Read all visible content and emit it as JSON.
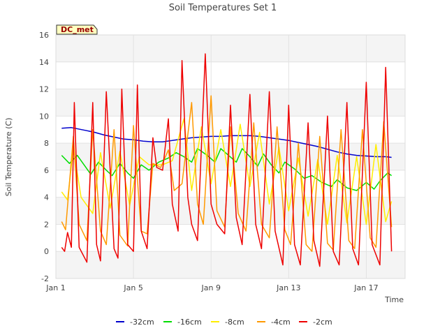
{
  "chart_data": {
    "type": "line",
    "title": "Soil Temperatures Set 1",
    "xlabel": "Time",
    "ylabel": "Soil Temperature (C)",
    "badge": "DC_met",
    "xlim": [
      1.0,
      19.0
    ],
    "ylim": [
      -2,
      16
    ],
    "yticks": [
      -2,
      0,
      2,
      4,
      6,
      8,
      10,
      12,
      14,
      16
    ],
    "xticks": [
      {
        "value": 1,
        "label": "Jan 1"
      },
      {
        "value": 5,
        "label": "Jan 5"
      },
      {
        "value": 9,
        "label": "Jan 9"
      },
      {
        "value": 13,
        "label": "Jan 13"
      },
      {
        "value": 17,
        "label": "Jan 17"
      }
    ],
    "grid": true,
    "legend": "bottom",
    "series": [
      {
        "name": "-32cm",
        "color": "#0000cc",
        "x": [
          1.3,
          1.8,
          2.5,
          3.0,
          3.5,
          4.0,
          4.5,
          5.0,
          5.5,
          6.0,
          6.5,
          7.0,
          7.5,
          8.0,
          8.5,
          9.0,
          9.5,
          10.0,
          10.5,
          11.0,
          11.5,
          12.0,
          12.5,
          13.0,
          13.5,
          14.0,
          14.5,
          15.0,
          15.5,
          16.0,
          16.5,
          17.0,
          17.5,
          18.0,
          18.3
        ],
        "y": [
          9.1,
          9.15,
          8.95,
          8.8,
          8.6,
          8.45,
          8.3,
          8.25,
          8.15,
          8.1,
          8.1,
          8.2,
          8.3,
          8.4,
          8.45,
          8.5,
          8.5,
          8.55,
          8.55,
          8.55,
          8.5,
          8.4,
          8.3,
          8.2,
          8.05,
          7.9,
          7.75,
          7.55,
          7.35,
          7.2,
          7.1,
          7.05,
          7.0,
          7.0,
          6.95
        ]
      },
      {
        "name": "-16cm",
        "color": "#00dd00",
        "x": [
          1.3,
          1.7,
          2.1,
          2.5,
          2.8,
          3.2,
          3.6,
          3.9,
          4.3,
          4.7,
          5.0,
          5.4,
          5.8,
          6.3,
          6.8,
          7.2,
          7.6,
          8.0,
          8.3,
          8.8,
          9.2,
          9.5,
          9.9,
          10.3,
          10.6,
          11.0,
          11.4,
          11.7,
          12.1,
          12.5,
          12.8,
          13.3,
          13.8,
          14.2,
          14.7,
          15.2,
          15.5,
          16.0,
          16.5,
          17.0,
          17.4,
          17.7,
          18.1,
          18.3
        ],
        "y": [
          7.1,
          6.5,
          7.1,
          6.3,
          5.7,
          6.6,
          6.0,
          5.6,
          6.5,
          5.8,
          5.4,
          6.4,
          6.0,
          6.6,
          6.9,
          7.3,
          7.0,
          6.6,
          7.6,
          7.1,
          6.6,
          7.6,
          7.1,
          6.6,
          7.6,
          7.0,
          6.3,
          7.2,
          6.4,
          5.8,
          6.6,
          6.1,
          5.4,
          5.6,
          5.1,
          4.8,
          5.3,
          4.7,
          4.5,
          5.1,
          4.6,
          5.2,
          5.8,
          5.6
        ]
      },
      {
        "name": "-8cm",
        "color": "#ffee00",
        "x": [
          1.3,
          1.6,
          1.9,
          2.3,
          2.9,
          3.3,
          3.8,
          4.3,
          4.8,
          5.3,
          5.8,
          6.5,
          7.0,
          7.6,
          8.0,
          8.5,
          9.0,
          9.5,
          10.0,
          10.5,
          11.0,
          11.5,
          12.0,
          12.5,
          13.0,
          13.5,
          14.0,
          14.5,
          15.0,
          15.5,
          16.0,
          16.5,
          17.0,
          17.5,
          18.0,
          18.3
        ],
        "y": [
          4.4,
          3.8,
          7.6,
          4.0,
          2.8,
          7.3,
          3.2,
          7.4,
          3.4,
          7.0,
          6.4,
          6.4,
          6.7,
          9.8,
          4.5,
          9.2,
          5.0,
          9.0,
          4.8,
          9.4,
          4.8,
          8.8,
          3.5,
          7.7,
          3.0,
          6.9,
          2.6,
          6.8,
          2.0,
          7.1,
          2.1,
          7.0,
          2.0,
          7.9,
          2.2,
          3.7
        ]
      },
      {
        "name": "-4cm",
        "color": "#ff9900",
        "x": [
          1.3,
          1.5,
          1.9,
          2.2,
          2.6,
          2.9,
          3.3,
          3.6,
          4.0,
          4.3,
          4.7,
          5.0,
          5.4,
          5.7,
          6.0,
          6.4,
          6.8,
          7.1,
          7.5,
          8.0,
          8.3,
          8.6,
          9.0,
          9.3,
          9.7,
          10.0,
          10.4,
          10.8,
          11.2,
          11.6,
          12.0,
          12.4,
          12.8,
          13.1,
          13.5,
          13.9,
          14.2,
          14.6,
          15.0,
          15.3,
          15.7,
          16.1,
          16.4,
          16.8,
          17.2,
          17.5,
          17.9,
          18.3
        ],
        "y": [
          2.2,
          1.6,
          8.5,
          2.0,
          0.8,
          9.0,
          1.5,
          0.5,
          9.0,
          1.2,
          0.4,
          9.3,
          1.5,
          1.3,
          6.5,
          6.2,
          7.5,
          4.5,
          5.0,
          11.0,
          3.5,
          2.0,
          11.5,
          3.0,
          1.8,
          9.2,
          2.8,
          1.5,
          9.5,
          2.0,
          1.0,
          9.2,
          1.6,
          0.5,
          8.0,
          0.5,
          0.0,
          8.5,
          0.6,
          0.1,
          9.0,
          0.8,
          0.2,
          9.0,
          1.0,
          0.3,
          9.6,
          1.8
        ]
      },
      {
        "name": "-2cm",
        "color": "#ee0000",
        "x": [
          1.3,
          1.45,
          1.6,
          1.8,
          1.95,
          2.2,
          2.6,
          2.9,
          3.1,
          3.3,
          3.6,
          4.0,
          4.2,
          4.4,
          4.7,
          5.0,
          5.2,
          5.4,
          5.7,
          6.0,
          6.2,
          6.5,
          6.8,
          7.0,
          7.3,
          7.5,
          7.8,
          8.0,
          8.3,
          8.7,
          9.0,
          9.3,
          9.7,
          10.0,
          10.3,
          10.6,
          11.0,
          11.3,
          11.6,
          12.0,
          12.3,
          12.7,
          13.0,
          13.3,
          13.6,
          14.0,
          14.3,
          14.6,
          15.0,
          15.3,
          15.6,
          16.0,
          16.3,
          16.6,
          17.0,
          17.3,
          17.7,
          18.0,
          18.3
        ],
        "y": [
          0.3,
          0.0,
          1.4,
          0.3,
          11.0,
          0.3,
          -0.8,
          11.0,
          0.5,
          -0.7,
          11.8,
          0.2,
          -0.5,
          12.0,
          0.5,
          0.0,
          12.3,
          1.5,
          0.2,
          8.4,
          6.2,
          6.0,
          9.8,
          3.5,
          1.5,
          14.1,
          4.0,
          2.0,
          0.8,
          14.6,
          3.5,
          2.0,
          1.3,
          10.8,
          2.5,
          0.5,
          11.6,
          2.0,
          0.2,
          11.8,
          1.5,
          -1.0,
          10.8,
          0.5,
          -1.0,
          9.5,
          0.8,
          -1.1,
          10.0,
          0.0,
          -1.0,
          11.0,
          0.2,
          -1.0,
          12.5,
          0.5,
          -1.0,
          13.6,
          0.0
        ]
      }
    ]
  }
}
